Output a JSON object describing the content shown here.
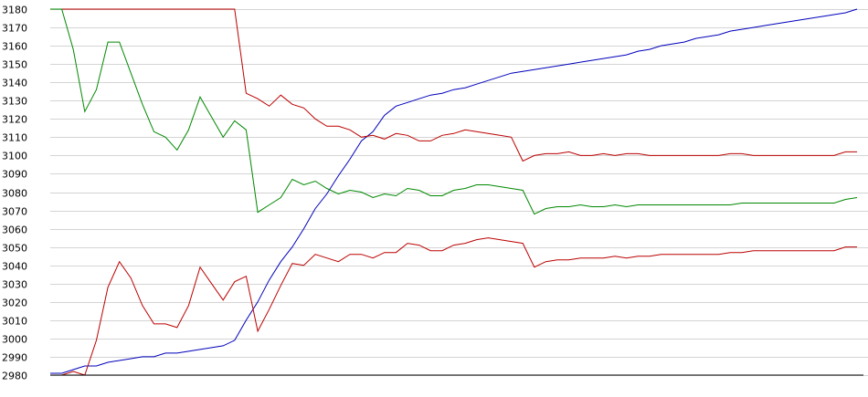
{
  "chart_data": {
    "type": "line",
    "title": "",
    "xlabel": "",
    "ylabel": "",
    "ylim": [
      2980,
      3180
    ],
    "yticks": [
      2980,
      2990,
      3000,
      3010,
      3020,
      3030,
      3040,
      3050,
      3060,
      3070,
      3080,
      3090,
      3100,
      3110,
      3120,
      3130,
      3140,
      3150,
      3160,
      3170,
      3180
    ],
    "xlim": [
      0,
      70
    ],
    "grid": true,
    "legend": "none",
    "x": [
      0,
      1,
      2,
      3,
      4,
      5,
      6,
      7,
      8,
      9,
      10,
      11,
      12,
      13,
      14,
      15,
      16,
      17,
      18,
      19,
      20,
      21,
      22,
      23,
      24,
      25,
      26,
      27,
      28,
      29,
      30,
      31,
      32,
      33,
      34,
      35,
      36,
      37,
      38,
      39,
      40,
      41,
      42,
      43,
      44,
      45,
      46,
      47,
      48,
      49,
      50,
      51,
      52,
      53,
      54,
      55,
      56,
      57,
      58,
      59,
      60,
      61,
      62,
      63,
      64,
      65,
      66,
      67,
      68,
      69,
      70
    ],
    "series": [
      {
        "color": "#0000bb",
        "values": [
          2981,
          2981,
          2983,
          2985,
          2985,
          2987,
          2988,
          2989,
          2990,
          2990,
          2992,
          2992,
          2993,
          2994,
          2995,
          2996,
          2999,
          3010,
          3020,
          3032,
          3042,
          3050,
          3060,
          3071,
          3079,
          3089,
          3098,
          3108,
          3113,
          3122,
          3127,
          3129,
          3131,
          3133,
          3134,
          3136,
          3137,
          3139,
          3141,
          3143,
          3145,
          3146,
          3147,
          3148,
          3149,
          3150,
          3151,
          3152,
          3153,
          3154,
          3155,
          3157,
          3158,
          3160,
          3161,
          3162,
          3164,
          3165,
          3166,
          3168,
          3169,
          3170,
          3171,
          3172,
          3173,
          3174,
          3175,
          3176,
          3177,
          3178,
          3180
        ]
      },
      {
        "color": "#bb0000",
        "values": [
          3180,
          3180,
          3180,
          3180,
          3180,
          3180,
          3180,
          3180,
          3180,
          3180,
          3180,
          3180,
          3180,
          3180,
          3180,
          3180,
          3180,
          3134,
          3131,
          3127,
          3133,
          3128,
          3126,
          3120,
          3116,
          3116,
          3114,
          3110,
          3111,
          3109,
          3112,
          3111,
          3108,
          3108,
          3111,
          3112,
          3114,
          3113,
          3112,
          3111,
          3110,
          3097,
          3100,
          3101,
          3101,
          3102,
          3100,
          3100,
          3101,
          3100,
          3101,
          3101,
          3100,
          3100,
          3100,
          3100,
          3100,
          3100,
          3100,
          3101,
          3101,
          3100,
          3100,
          3100,
          3100,
          3100,
          3100,
          3100,
          3100,
          3102,
          3102
        ]
      },
      {
        "color": "#008800",
        "values": [
          3180,
          3180,
          3158,
          3124,
          3136,
          3162,
          3162,
          3145,
          3128,
          3113,
          3110,
          3103,
          3114,
          3132,
          3121,
          3110,
          3119,
          3114,
          3069,
          3073,
          3077,
          3087,
          3084,
          3086,
          3082,
          3079,
          3081,
          3080,
          3077,
          3079,
          3078,
          3082,
          3081,
          3078,
          3078,
          3081,
          3082,
          3084,
          3084,
          3083,
          3082,
          3081,
          3068,
          3071,
          3072,
          3072,
          3073,
          3072,
          3072,
          3073,
          3072,
          3073,
          3073,
          3073,
          3073,
          3073,
          3073,
          3073,
          3073,
          3073,
          3074,
          3074,
          3074,
          3074,
          3074,
          3074,
          3074,
          3074,
          3074,
          3076,
          3077
        ]
      },
      {
        "color": "#bb0000",
        "values": [
          2980,
          2980,
          2982,
          2980,
          2999,
          3028,
          3042,
          3033,
          3018,
          3008,
          3008,
          3006,
          3018,
          3039,
          3030,
          3021,
          3031,
          3034,
          3004,
          3016,
          3029,
          3041,
          3040,
          3046,
          3044,
          3042,
          3046,
          3046,
          3044,
          3047,
          3047,
          3052,
          3051,
          3048,
          3048,
          3051,
          3052,
          3054,
          3055,
          3054,
          3053,
          3052,
          3039,
          3042,
          3043,
          3043,
          3044,
          3044,
          3044,
          3045,
          3044,
          3045,
          3045,
          3046,
          3046,
          3046,
          3046,
          3046,
          3046,
          3047,
          3047,
          3048,
          3048,
          3048,
          3048,
          3048,
          3048,
          3048,
          3048,
          3050,
          3050
        ]
      }
    ]
  }
}
